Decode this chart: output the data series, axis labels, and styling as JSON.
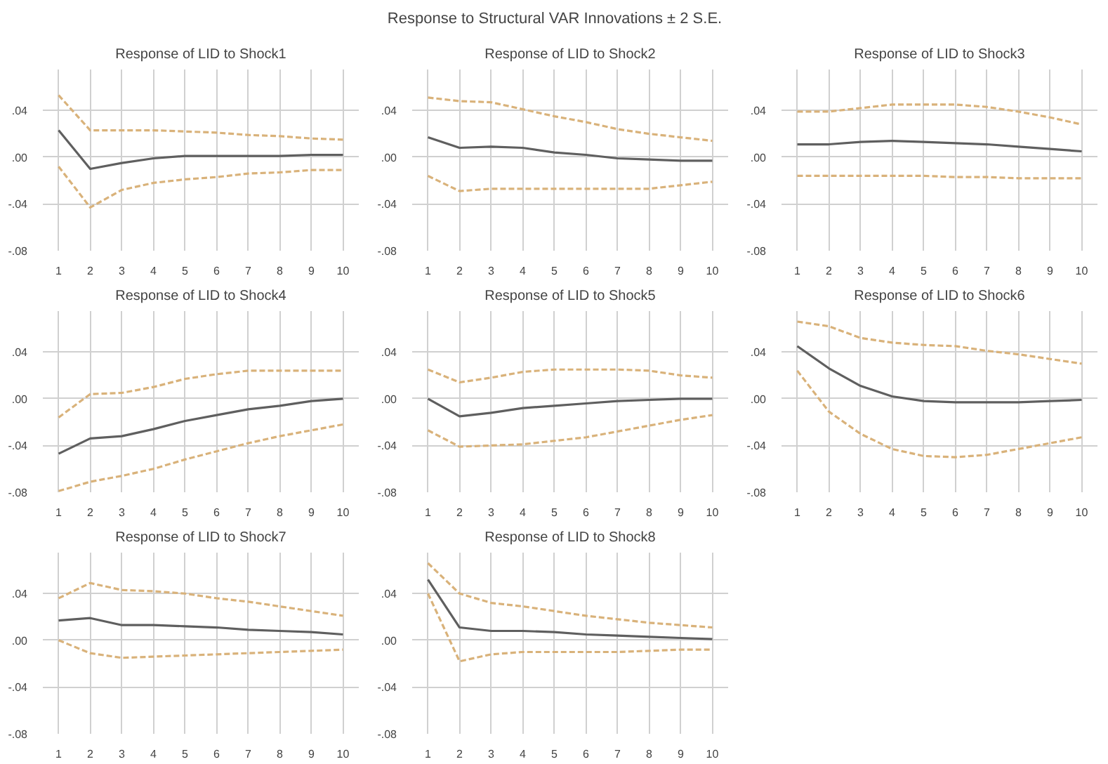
{
  "chart_data": [
    {
      "type": "other",
      "title": "Response to Structural VAR Innovations ± 2 S.E."
    },
    {
      "type": "line",
      "title": "Response of LID to Shock1",
      "x": [
        1,
        2,
        3,
        4,
        5,
        6,
        7,
        8,
        9,
        10
      ],
      "xlim": [
        0.5,
        10.5
      ],
      "xticks": [
        1,
        2,
        3,
        4,
        5,
        6,
        7,
        8,
        9,
        10
      ],
      "ylim": [
        -0.08,
        0.075
      ],
      "yticks": [
        {
          "value": 0.04,
          "label": ".04"
        },
        {
          "value": 0.0,
          "label": ".00"
        },
        {
          "value": -0.04,
          "label": "-.04"
        },
        {
          "value": -0.08,
          "label": "-.08"
        }
      ],
      "grid": true,
      "series": [
        {
          "color": "#d9b27a",
          "line_style": "dashed",
          "values": [
            0.053,
            0.023,
            0.023,
            0.023,
            0.022,
            0.021,
            0.019,
            0.018,
            0.016,
            0.015
          ]
        },
        {
          "color": "#5f5f5f",
          "line_style": "solid",
          "values": [
            0.023,
            -0.01,
            -0.005,
            -0.001,
            0.001,
            0.001,
            0.001,
            0.001,
            0.002,
            0.002
          ]
        },
        {
          "color": "#d9b27a",
          "line_style": "dashed",
          "values": [
            -0.008,
            -0.043,
            -0.028,
            -0.022,
            -0.019,
            -0.017,
            -0.014,
            -0.013,
            -0.011,
            -0.011
          ]
        }
      ]
    },
    {
      "type": "line",
      "title": "Response of LID to Shock2",
      "x": [
        1,
        2,
        3,
        4,
        5,
        6,
        7,
        8,
        9,
        10
      ],
      "xlim": [
        0.5,
        10.5
      ],
      "xticks": [
        1,
        2,
        3,
        4,
        5,
        6,
        7,
        8,
        9,
        10
      ],
      "ylim": [
        -0.08,
        0.075
      ],
      "yticks": [
        {
          "value": 0.04,
          "label": ".04"
        },
        {
          "value": 0.0,
          "label": ".00"
        },
        {
          "value": -0.04,
          "label": "-.04"
        },
        {
          "value": -0.08,
          "label": "-.08"
        }
      ],
      "grid": true,
      "series": [
        {
          "color": "#d9b27a",
          "line_style": "dashed",
          "values": [
            0.051,
            0.048,
            0.047,
            0.041,
            0.035,
            0.03,
            0.024,
            0.02,
            0.017,
            0.014
          ]
        },
        {
          "color": "#5f5f5f",
          "line_style": "solid",
          "values": [
            0.017,
            0.008,
            0.009,
            0.008,
            0.004,
            0.002,
            -0.001,
            -0.002,
            -0.003,
            -0.003
          ]
        },
        {
          "color": "#d9b27a",
          "line_style": "dashed",
          "values": [
            -0.016,
            -0.029,
            -0.027,
            -0.027,
            -0.027,
            -0.027,
            -0.027,
            -0.027,
            -0.024,
            -0.021
          ]
        }
      ]
    },
    {
      "type": "line",
      "title": "Response of LID to Shock3",
      "x": [
        1,
        2,
        3,
        4,
        5,
        6,
        7,
        8,
        9,
        10
      ],
      "xlim": [
        0.5,
        10.5
      ],
      "xticks": [
        1,
        2,
        3,
        4,
        5,
        6,
        7,
        8,
        9,
        10
      ],
      "ylim": [
        -0.08,
        0.075
      ],
      "yticks": [
        {
          "value": 0.04,
          "label": ".04"
        },
        {
          "value": 0.0,
          "label": ".00"
        },
        {
          "value": -0.04,
          "label": "-.04"
        },
        {
          "value": -0.08,
          "label": "-.08"
        }
      ],
      "grid": true,
      "series": [
        {
          "color": "#d9b27a",
          "line_style": "dashed",
          "values": [
            0.039,
            0.039,
            0.042,
            0.045,
            0.045,
            0.045,
            0.043,
            0.039,
            0.034,
            0.028
          ]
        },
        {
          "color": "#5f5f5f",
          "line_style": "solid",
          "values": [
            0.011,
            0.011,
            0.013,
            0.014,
            0.013,
            0.012,
            0.011,
            0.009,
            0.007,
            0.005
          ]
        },
        {
          "color": "#d9b27a",
          "line_style": "dashed",
          "values": [
            -0.016,
            -0.016,
            -0.016,
            -0.016,
            -0.016,
            -0.017,
            -0.017,
            -0.018,
            -0.018,
            -0.018
          ]
        }
      ]
    },
    {
      "type": "line",
      "title": "Response of LID to Shock4",
      "x": [
        1,
        2,
        3,
        4,
        5,
        6,
        7,
        8,
        9,
        10
      ],
      "xlim": [
        0.5,
        10.5
      ],
      "xticks": [
        1,
        2,
        3,
        4,
        5,
        6,
        7,
        8,
        9,
        10
      ],
      "ylim": [
        -0.08,
        0.075
      ],
      "yticks": [
        {
          "value": 0.04,
          "label": ".04"
        },
        {
          "value": 0.0,
          "label": ".00"
        },
        {
          "value": -0.04,
          "label": "-.04"
        },
        {
          "value": -0.08,
          "label": "-.08"
        }
      ],
      "grid": true,
      "series": [
        {
          "color": "#d9b27a",
          "line_style": "dashed",
          "values": [
            -0.016,
            0.004,
            0.005,
            0.01,
            0.017,
            0.021,
            0.024,
            0.024,
            0.024,
            0.024
          ]
        },
        {
          "color": "#5f5f5f",
          "line_style": "solid",
          "values": [
            -0.047,
            -0.034,
            -0.032,
            -0.026,
            -0.019,
            -0.014,
            -0.009,
            -0.006,
            -0.002,
            0.0
          ]
        },
        {
          "color": "#d9b27a",
          "line_style": "dashed",
          "values": [
            -0.079,
            -0.071,
            -0.066,
            -0.06,
            -0.052,
            -0.045,
            -0.038,
            -0.032,
            -0.027,
            -0.022
          ]
        }
      ]
    },
    {
      "type": "line",
      "title": "Response of LID to Shock5",
      "x": [
        1,
        2,
        3,
        4,
        5,
        6,
        7,
        8,
        9,
        10
      ],
      "xlim": [
        0.5,
        10.5
      ],
      "xticks": [
        1,
        2,
        3,
        4,
        5,
        6,
        7,
        8,
        9,
        10
      ],
      "ylim": [
        -0.08,
        0.075
      ],
      "yticks": [
        {
          "value": 0.04,
          "label": ".04"
        },
        {
          "value": 0.0,
          "label": ".00"
        },
        {
          "value": -0.04,
          "label": "-.04"
        },
        {
          "value": -0.08,
          "label": "-.08"
        }
      ],
      "grid": true,
      "series": [
        {
          "color": "#d9b27a",
          "line_style": "dashed",
          "values": [
            0.025,
            0.014,
            0.018,
            0.023,
            0.025,
            0.025,
            0.025,
            0.024,
            0.02,
            0.018
          ]
        },
        {
          "color": "#5f5f5f",
          "line_style": "solid",
          "values": [
            0.0,
            -0.015,
            -0.012,
            -0.008,
            -0.006,
            -0.004,
            -0.002,
            -0.001,
            0.0,
            0.0
          ]
        },
        {
          "color": "#d9b27a",
          "line_style": "dashed",
          "values": [
            -0.027,
            -0.041,
            -0.04,
            -0.039,
            -0.036,
            -0.033,
            -0.028,
            -0.023,
            -0.018,
            -0.014
          ]
        }
      ]
    },
    {
      "type": "line",
      "title": "Response of LID to Shock6",
      "x": [
        1,
        2,
        3,
        4,
        5,
        6,
        7,
        8,
        9,
        10
      ],
      "xlim": [
        0.5,
        10.5
      ],
      "xticks": [
        1,
        2,
        3,
        4,
        5,
        6,
        7,
        8,
        9,
        10
      ],
      "ylim": [
        -0.08,
        0.075
      ],
      "yticks": [
        {
          "value": 0.04,
          "label": ".04"
        },
        {
          "value": 0.0,
          "label": ".00"
        },
        {
          "value": -0.04,
          "label": "-.04"
        },
        {
          "value": -0.08,
          "label": "-.08"
        }
      ],
      "grid": true,
      "series": [
        {
          "color": "#d9b27a",
          "line_style": "dashed",
          "values": [
            0.066,
            0.062,
            0.052,
            0.048,
            0.046,
            0.045,
            0.041,
            0.038,
            0.034,
            0.03
          ]
        },
        {
          "color": "#5f5f5f",
          "line_style": "solid",
          "values": [
            0.045,
            0.026,
            0.011,
            0.002,
            -0.002,
            -0.003,
            -0.003,
            -0.003,
            -0.002,
            -0.001
          ]
        },
        {
          "color": "#d9b27a",
          "line_style": "dashed",
          "values": [
            0.024,
            -0.011,
            -0.03,
            -0.043,
            -0.049,
            -0.05,
            -0.048,
            -0.043,
            -0.038,
            -0.033
          ]
        }
      ]
    },
    {
      "type": "line",
      "title": "Response of LID to Shock7",
      "x": [
        1,
        2,
        3,
        4,
        5,
        6,
        7,
        8,
        9,
        10
      ],
      "xlim": [
        0.5,
        10.5
      ],
      "xticks": [
        1,
        2,
        3,
        4,
        5,
        6,
        7,
        8,
        9,
        10
      ],
      "ylim": [
        -0.08,
        0.075
      ],
      "yticks": [
        {
          "value": 0.04,
          "label": ".04"
        },
        {
          "value": 0.0,
          "label": ".00"
        },
        {
          "value": -0.04,
          "label": "-.04"
        },
        {
          "value": -0.08,
          "label": "-.08"
        }
      ],
      "grid": true,
      "series": [
        {
          "color": "#d9b27a",
          "line_style": "dashed",
          "values": [
            0.036,
            0.049,
            0.043,
            0.042,
            0.04,
            0.036,
            0.033,
            0.029,
            0.025,
            0.021
          ]
        },
        {
          "color": "#5f5f5f",
          "line_style": "solid",
          "values": [
            0.017,
            0.019,
            0.013,
            0.013,
            0.012,
            0.011,
            0.009,
            0.008,
            0.007,
            0.005
          ]
        },
        {
          "color": "#d9b27a",
          "line_style": "dashed",
          "values": [
            0.0,
            -0.011,
            -0.015,
            -0.014,
            -0.013,
            -0.012,
            -0.011,
            -0.01,
            -0.009,
            -0.008
          ]
        }
      ]
    },
    {
      "type": "line",
      "title": "Response of LID to Shock8",
      "x": [
        1,
        2,
        3,
        4,
        5,
        6,
        7,
        8,
        9,
        10
      ],
      "xlim": [
        0.5,
        10.5
      ],
      "xticks": [
        1,
        2,
        3,
        4,
        5,
        6,
        7,
        8,
        9,
        10
      ],
      "ylim": [
        -0.08,
        0.075
      ],
      "yticks": [
        {
          "value": 0.04,
          "label": ".04"
        },
        {
          "value": 0.0,
          "label": ".00"
        },
        {
          "value": -0.04,
          "label": "-.04"
        },
        {
          "value": -0.08,
          "label": "-.08"
        }
      ],
      "grid": true,
      "series": [
        {
          "color": "#d9b27a",
          "line_style": "dashed",
          "values": [
            0.066,
            0.04,
            0.032,
            0.029,
            0.025,
            0.021,
            0.018,
            0.015,
            0.013,
            0.011
          ]
        },
        {
          "color": "#5f5f5f",
          "line_style": "solid",
          "values": [
            0.052,
            0.011,
            0.008,
            0.008,
            0.007,
            0.005,
            0.004,
            0.003,
            0.002,
            0.001
          ]
        },
        {
          "color": "#d9b27a",
          "line_style": "dashed",
          "values": [
            0.04,
            -0.018,
            -0.012,
            -0.01,
            -0.01,
            -0.01,
            -0.01,
            -0.009,
            -0.008,
            -0.008
          ]
        }
      ]
    }
  ]
}
